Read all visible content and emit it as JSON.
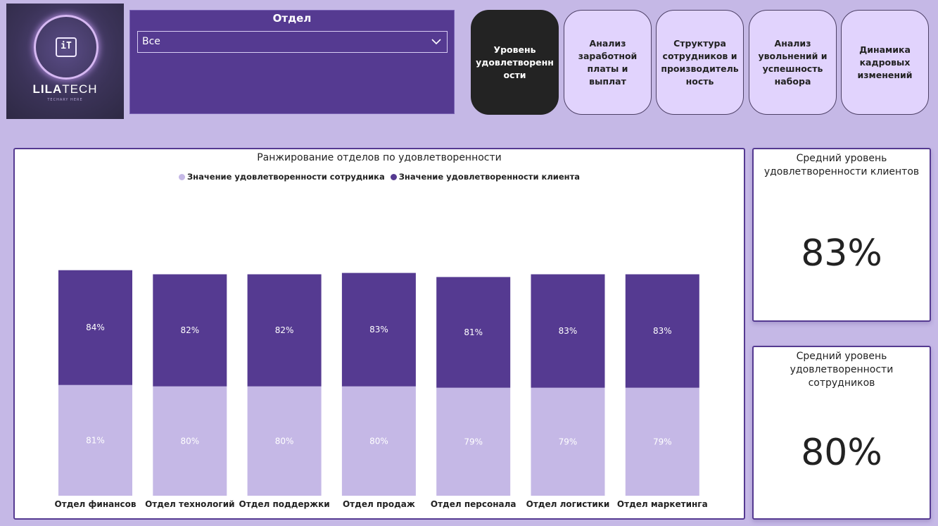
{
  "logo": {
    "brand_a": "LILA",
    "brand_b": "TECH",
    "chip": "iT",
    "tagline": "TECHARY HERE"
  },
  "slicer": {
    "title": "Отдел",
    "selected": "Все"
  },
  "nav": [
    {
      "label": "Уровень удовлетворенн ости",
      "active": true
    },
    {
      "label": "Анализ заработной платы и выплат",
      "active": false
    },
    {
      "label": "Структура сотрудников и производитель ность",
      "active": false
    },
    {
      "label": "Анализ увольнений и успешность набора",
      "active": false
    },
    {
      "label": "Динамика кадровых изменений",
      "active": false
    }
  ],
  "colors": {
    "employee": "#c5b8e6",
    "client": "#553a91"
  },
  "chart_data": {
    "type": "bar",
    "stacked": true,
    "title": "Ранжирование отделов по удовлетворенности",
    "legend_position": "top-center",
    "categories": [
      "Отдел финансов",
      "Отдел технологий",
      "Отдел поддержки",
      "Отдел продаж",
      "Отдел персонала",
      "Отдел логистики",
      "Отдел маркетинга"
    ],
    "series": [
      {
        "name": "Значение удовлетворенности сотрудника",
        "values": [
          81,
          80,
          80,
          80,
          79,
          79,
          79
        ],
        "labels": [
          "81%",
          "80%",
          "80%",
          "80%",
          "79%",
          "79%",
          "79%"
        ]
      },
      {
        "name": "Значение удовлетворенности клиента",
        "values": [
          84,
          82,
          82,
          83,
          81,
          83,
          83
        ],
        "labels": [
          "84%",
          "82%",
          "82%",
          "83%",
          "81%",
          "83%",
          "83%"
        ]
      }
    ],
    "ylim": [
      0,
      170
    ],
    "grid": false
  },
  "kpis": [
    {
      "label": "Средний уровень удовлетворенности клиентов",
      "value": "83%"
    },
    {
      "label": "Средний уровень удовлетворенности сотрудников",
      "value": "80%"
    }
  ]
}
